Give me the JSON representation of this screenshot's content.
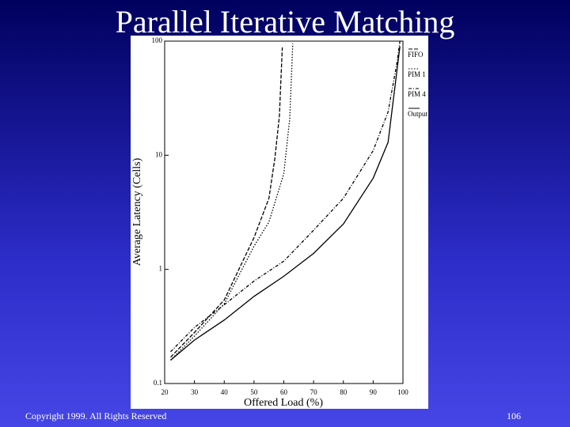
{
  "title": "Parallel Iterative Matching",
  "footer": "Copyright 1999. All Rights Reserved",
  "page_number": 106,
  "chart_data": {
    "type": "line",
    "xlabel": "Offered Load (%)",
    "ylabel": "Average Latency (Cells)",
    "xlim": [
      20,
      100
    ],
    "xticks": [
      20,
      30,
      40,
      50,
      60,
      70,
      80,
      90,
      100
    ],
    "ylim": [
      0.1,
      100
    ],
    "yticks": [
      0.1,
      1,
      10,
      100
    ],
    "yscale": "log",
    "series": [
      {
        "name": "FIFO",
        "color": "#000000",
        "line_style": "dashed",
        "x": [
          22,
          30,
          40,
          50,
          55,
          57,
          58.5,
          59.5
        ],
        "values": [
          0.17,
          0.28,
          0.54,
          1.9,
          4.2,
          9.4,
          22,
          88
        ]
      },
      {
        "name": "PIM 1",
        "color": "#000000",
        "line_style": "dotted",
        "x": [
          22,
          30,
          40,
          50,
          55,
          60,
          62,
          63
        ],
        "values": [
          0.16,
          0.26,
          0.5,
          1.6,
          2.6,
          6.9,
          21,
          95
        ]
      },
      {
        "name": "PIM 4",
        "color": "#000000",
        "line_style": "dashdot",
        "x": [
          22,
          30,
          40,
          50,
          60,
          70,
          80,
          90,
          95,
          98,
          99
        ],
        "values": [
          0.19,
          0.31,
          0.49,
          0.79,
          1.18,
          2.2,
          4.2,
          11,
          24,
          65,
          100
        ]
      },
      {
        "name": "Output",
        "color": "#000000",
        "line_style": "solid",
        "x": [
          22,
          30,
          40,
          50,
          60,
          70,
          80,
          90,
          95,
          99
        ],
        "values": [
          0.16,
          0.24,
          0.36,
          0.58,
          0.87,
          1.38,
          2.5,
          6.3,
          13,
          90
        ]
      }
    ]
  }
}
